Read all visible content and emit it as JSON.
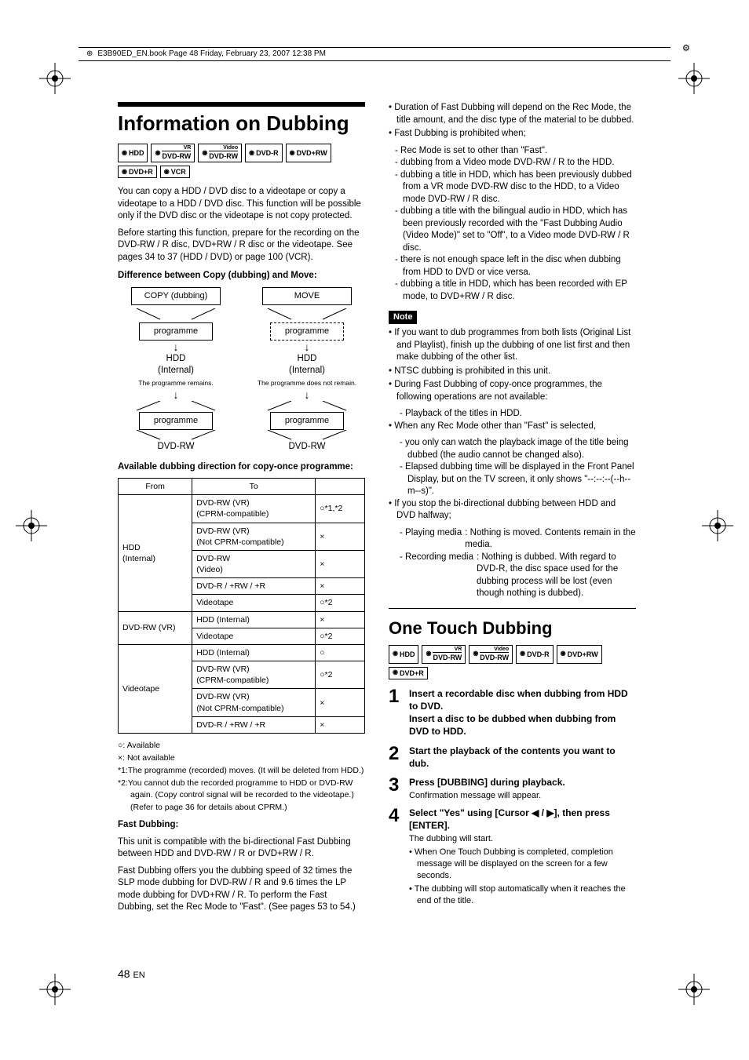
{
  "header": "E3B90ED_EN.book  Page 48  Friday, February 23, 2007  12:38 PM",
  "pagenum": "48",
  "pagelang": "EN",
  "left": {
    "title": "Information on Dubbing",
    "badges": [
      "HDD",
      "DVD-RW",
      "DVD-RW",
      "DVD-R",
      "DVD+RW",
      "DVD+R",
      "VCR"
    ],
    "badge_overlines": [
      "",
      "VR",
      "Video",
      "",
      "",
      "",
      ""
    ],
    "intro1": "You can copy a HDD / DVD disc to a videotape or copy a videotape to a HDD / DVD disc. This function will be possible only if the DVD disc or the videotape is not copy protected.",
    "intro2": "Before starting this function, prepare for the recording on the DVD-RW / R disc, DVD+RW / R disc or the videotape. See pages 34 to 37 (HDD / DVD) or page 100 (VCR).",
    "diff_head": "Difference between Copy (dubbing) and Move:",
    "diagram": {
      "copy_title": "COPY (dubbing)",
      "move_title": "MOVE",
      "prog": "programme",
      "hdd": "HDD\n(Internal)",
      "copy_note": "The programme remains.",
      "move_note": "The programme does not remain.",
      "dvd": "DVD-RW"
    },
    "avail_head": "Available dubbing direction for copy-once programme:",
    "table": {
      "from": "From",
      "to": "To",
      "rows": [
        {
          "from": "HDD\n(Internal)",
          "to": "DVD-RW (VR)\n(CPRM-compatible)",
          "v": "○*1,*2"
        },
        {
          "from": "",
          "to": "DVD-RW (VR)\n(Not CPRM-compatible)",
          "v": "×"
        },
        {
          "from": "",
          "to": "DVD-RW\n(Video)",
          "v": "×"
        },
        {
          "from": "",
          "to": "DVD-R / +RW / +R",
          "v": "×"
        },
        {
          "from": "",
          "to": "Videotape",
          "v": "○*2"
        },
        {
          "from": "DVD-RW (VR)",
          "to": "HDD (Internal)",
          "v": "×"
        },
        {
          "from": "",
          "to": "Videotape",
          "v": "○*2"
        },
        {
          "from": "Videotape",
          "to": "HDD (Internal)",
          "v": "○"
        },
        {
          "from": "",
          "to": "DVD-RW (VR)\n(CPRM-compatible)",
          "v": "○*2"
        },
        {
          "from": "",
          "to": "DVD-RW (VR)\n(Not CPRM-compatible)",
          "v": "×"
        },
        {
          "from": "",
          "to": "DVD-R / +RW / +R",
          "v": "×"
        }
      ]
    },
    "legend": {
      "avail": "○: Available",
      "notavail": "×: Not available",
      "n1": "*1:The programme (recorded) moves. (It will be deleted from HDD.)",
      "n2": "*2:You cannot dub the recorded programme to HDD or DVD-RW again. (Copy control signal will be recorded to the videotape.)",
      "n2b": "(Refer to page 36 for details about CPRM.)"
    },
    "fast_head": "Fast Dubbing:",
    "fast1": "This unit is compatible with the bi-directional Fast Dubbing between HDD and DVD-RW / R or DVD+RW / R.",
    "fast2": "Fast Dubbing offers you the dubbing speed of 32 times the SLP mode dubbing for DVD-RW / R and 9.6 times the LP mode dubbing for DVD+RW / R. To perform the Fast Dubbing, set the Rec Mode to \"Fast\". (See pages 53 to 54.)"
  },
  "right": {
    "top_bullets": [
      "Duration of Fast Dubbing will depend on the Rec Mode, the title amount, and the disc type of the material to be dubbed.",
      "Fast Dubbing is prohibited when;"
    ],
    "top_sub": [
      "Rec Mode is set to other than \"Fast\".",
      "dubbing from a Video mode DVD-RW / R to the HDD.",
      "dubbing a title in HDD, which has been previously dubbed from a VR mode DVD-RW disc to the HDD, to a Video mode DVD-RW / R disc.",
      "dubbing a title with the bilingual audio in HDD, which has been previously recorded with the \"Fast Dubbing Audio (Video Mode)\" set to \"Off\", to a Video mode DVD-RW / R disc.",
      "there is not enough space left in the disc when dubbing from HDD to DVD or vice versa.",
      "dubbing a title in HDD, which has been recorded with EP mode, to DVD+RW / R disc."
    ],
    "note_label": "Note",
    "note_bullets": [
      "If you want to dub programmes from both lists (Original List and Playlist), finish up the dubbing of one list first and then make dubbing of the other list.",
      "NTSC dubbing is prohibited in this unit.",
      "During Fast Dubbing of copy-once programmes, the following operations are not available:"
    ],
    "note_sub1": [
      "Playback of the titles in HDD."
    ],
    "note_bullets2": [
      "When any Rec Mode other than \"Fast\" is selected,"
    ],
    "note_sub2": [
      "you only can watch the playback image of the title being dubbed (the audio cannot be changed also).",
      "Elapsed dubbing time will be displayed in the Front Panel Display, but on the TV screen, it only shows \"--:--:--(--h--m--s)\"."
    ],
    "note_bullets3": [
      "If you stop the bi-directional dubbing between HDD and DVD halfway;"
    ],
    "def1_l": "- Playing media",
    "def1_r": ": Nothing is moved. Contents remain in the media.",
    "def2_l": "- Recording media",
    "def2_r": ": Nothing is dubbed. With regard to DVD-R, the disc space used for the dubbing process will be lost (even though nothing is dubbed).",
    "onetouch_title": "One Touch Dubbing",
    "onetouch_badges": [
      "HDD",
      "DVD-RW",
      "DVD-RW",
      "DVD-R",
      "DVD+RW",
      "DVD+R"
    ],
    "onetouch_overlines": [
      "",
      "VR",
      "Video",
      "",
      "",
      ""
    ],
    "steps": [
      {
        "n": "1",
        "head": "Insert a recordable disc when dubbing from HDD to DVD.\nInsert a disc to be dubbed when dubbing from DVD to HDD."
      },
      {
        "n": "2",
        "head": "Start the playback of the contents you want to dub."
      },
      {
        "n": "3",
        "head": "Press [DUBBING] during playback.",
        "sub": "Confirmation message will appear."
      },
      {
        "n": "4",
        "head": "Select \"Yes\" using [Cursor ◀ / ▶], then press [ENTER].",
        "sub": "The dubbing will start.",
        "subbul": [
          "When One Touch Dubbing is completed, completion message will be displayed on the screen for a few seconds.",
          "The dubbing will stop automatically when it reaches the end of the title."
        ]
      }
    ]
  }
}
